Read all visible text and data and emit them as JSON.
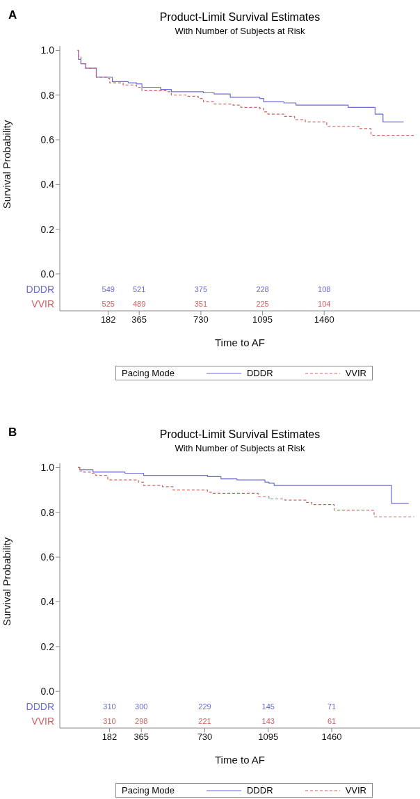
{
  "chart_data": [
    {
      "type": "step",
      "title": "Product-Limit Survival Estimates",
      "subtitle": "With Number of Subjects at Risk",
      "xlabel": "Time to AF",
      "ylabel": "Survival Probability",
      "legend_title": "Pacing Mode",
      "legend": "bottom",
      "xlim": [
        -105,
        2027
      ],
      "xticks": [
        182,
        365,
        730,
        1095,
        1460
      ],
      "ylim": [
        -0.165,
        1.02
      ],
      "yticks": [
        {
          "value": 0,
          "label": "0.0"
        },
        {
          "value": 0.2,
          "label": "0.2"
        },
        {
          "value": 0.4,
          "label": "0.4"
        },
        {
          "value": 0.6,
          "label": "0.6"
        },
        {
          "value": 0.8,
          "label": "0.8"
        },
        {
          "value": 1,
          "label": "1.0"
        }
      ],
      "series": [
        {
          "name": "DDDR",
          "color": "#6a6ad8",
          "line_style": "solid",
          "x": [
            0,
            5,
            20,
            48,
            111,
            206,
            300,
            349,
            381,
            492,
            555,
            745,
            809,
            904,
            1079,
            1102,
            1221,
            1293,
            1602,
            1761,
            1808,
            1930
          ],
          "values": [
            1.0,
            0.96,
            0.94,
            0.92,
            0.88,
            0.86,
            0.855,
            0.85,
            0.835,
            0.825,
            0.815,
            0.81,
            0.805,
            0.79,
            0.785,
            0.77,
            0.765,
            0.755,
            0.745,
            0.715,
            0.68,
            0.68
          ]
        },
        {
          "name": "VVIR",
          "color": "#d06060",
          "line_style": "dashed",
          "x": [
            0,
            5,
            20,
            48,
            111,
            174,
            190,
            270,
            349,
            381,
            523,
            555,
            650,
            714,
            745,
            809,
            920,
            967,
            1079,
            1102,
            1126,
            1221,
            1285,
            1348,
            1475,
            1665,
            1737,
            1990
          ],
          "values": [
            1.0,
            0.97,
            0.94,
            0.92,
            0.88,
            0.875,
            0.855,
            0.845,
            0.835,
            0.82,
            0.815,
            0.8,
            0.795,
            0.785,
            0.77,
            0.76,
            0.755,
            0.745,
            0.74,
            0.725,
            0.715,
            0.705,
            0.69,
            0.68,
            0.66,
            0.65,
            0.62,
            0.62
          ]
        }
      ],
      "annotations": [
        "A",
        "DDDR",
        "549",
        "521",
        "375",
        "228",
        "108",
        "VVIR",
        "525",
        "489",
        "351",
        "225",
        "104"
      ]
    },
    {
      "type": "step",
      "title": "Product-Limit Survival Estimates",
      "subtitle": "With Number of Subjects at Risk",
      "xlabel": "Time to AF",
      "ylabel": "Survival Probability",
      "legend_title": "Pacing Mode",
      "legend": "bottom",
      "xlim": [
        -104,
        1968
      ],
      "xticks": [
        182,
        365,
        730,
        1095,
        1460
      ],
      "ylim": [
        -0.164,
        1.02
      ],
      "yticks": [
        {
          "value": 0,
          "label": "0.0"
        },
        {
          "value": 0.2,
          "label": "0.2"
        },
        {
          "value": 0.4,
          "label": "0.4"
        },
        {
          "value": 0.6,
          "label": "0.6"
        },
        {
          "value": 0.8,
          "label": "0.8"
        },
        {
          "value": 1,
          "label": "1.0"
        }
      ],
      "series": [
        {
          "name": "DDDR",
          "color": "#6a6ad8",
          "line_style": "solid",
          "x": [
            0,
            11,
            87,
            271,
            378,
            746,
            823,
            915,
            1076,
            1099,
            1129,
            1804,
            1903
          ],
          "values": [
            1.0,
            0.99,
            0.98,
            0.975,
            0.965,
            0.96,
            0.95,
            0.945,
            0.935,
            0.93,
            0.92,
            0.84,
            0.84
          ]
        },
        {
          "name": "VVIR",
          "color": "#d06060",
          "line_style": "dashed",
          "x": [
            0,
            11,
            26,
            72,
            103,
            172,
            348,
            378,
            486,
            547,
            746,
            777,
            1037,
            1099,
            1191,
            1313,
            1344,
            1474,
            1704,
            1934
          ],
          "values": [
            1.0,
            0.985,
            0.98,
            0.975,
            0.965,
            0.945,
            0.935,
            0.92,
            0.915,
            0.9,
            0.89,
            0.885,
            0.87,
            0.86,
            0.855,
            0.845,
            0.835,
            0.81,
            0.78,
            0.78
          ]
        }
      ],
      "annotations": [
        "B",
        "DDDR",
        "310",
        "300",
        "229",
        "145",
        "71",
        "VVIR",
        "310",
        "298",
        "221",
        "143",
        "61"
      ]
    }
  ]
}
